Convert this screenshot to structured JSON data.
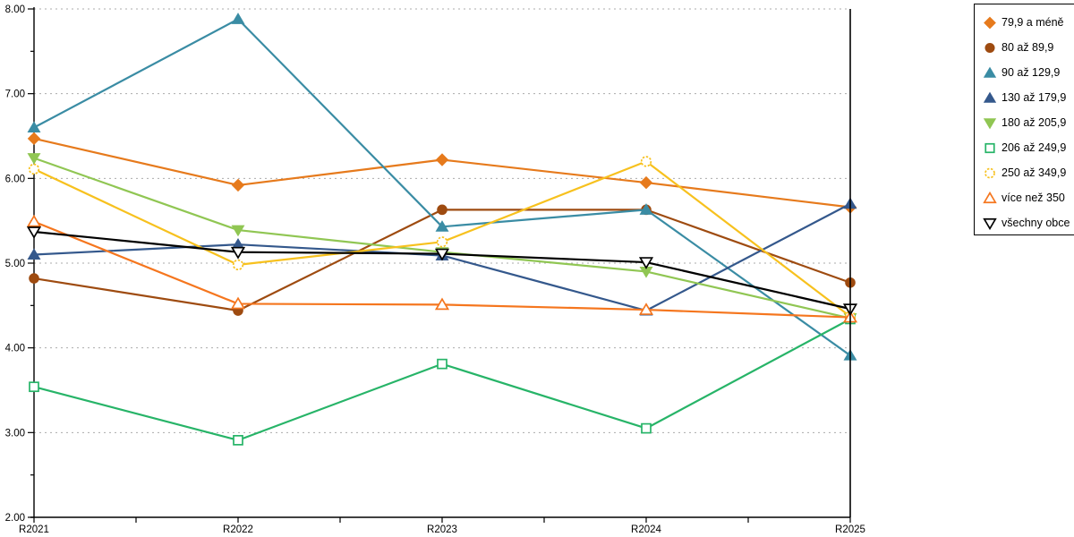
{
  "chart_data": {
    "type": "line",
    "title": "",
    "xlabel": "",
    "ylabel": "",
    "categories": [
      "R2021",
      "R2022",
      "R2023",
      "R2024",
      "R2025"
    ],
    "series": [
      {
        "name": "79,9 a méně",
        "marker": "diamond",
        "fill": "filled",
        "color": "#E67A1C",
        "values": [
          6.47,
          5.92,
          6.22,
          5.95,
          5.66
        ]
      },
      {
        "name": "80 až 89,9",
        "marker": "circle",
        "fill": "filled",
        "color": "#9E4B10",
        "values": [
          4.82,
          4.44,
          5.63,
          5.63,
          4.77
        ]
      },
      {
        "name": "90 až 129,9",
        "marker": "triangle-up",
        "fill": "filled",
        "color": "#3A8CA4",
        "values": [
          6.6,
          7.88,
          5.43,
          5.63,
          3.91
        ]
      },
      {
        "name": "130 až 179,9",
        "marker": "triangle-up",
        "fill": "filled",
        "color": "#34588C",
        "values": [
          5.1,
          5.22,
          5.09,
          4.44,
          5.7
        ]
      },
      {
        "name": "180 až 205,9",
        "marker": "triangle-down",
        "fill": "filled",
        "color": "#90C653",
        "values": [
          6.24,
          5.39,
          5.13,
          4.9,
          4.35
        ]
      },
      {
        "name": "206 až 249,9",
        "marker": "square",
        "fill": "open",
        "color": "#27B468",
        "values": [
          3.54,
          2.91,
          3.81,
          3.05,
          4.34
        ]
      },
      {
        "name": "250 až 349,9",
        "marker": "circle",
        "fill": "open",
        "color": "#F7C11E",
        "values": [
          6.11,
          4.98,
          5.25,
          6.2,
          4.37
        ],
        "outline": "dashed"
      },
      {
        "name": "více než 350",
        "marker": "triangle-up",
        "fill": "open",
        "color": "#F5761E",
        "values": [
          5.49,
          4.52,
          4.51,
          4.45,
          4.36
        ]
      },
      {
        "name": "všechny obce",
        "marker": "triangle-down",
        "fill": "open",
        "color": "#000000",
        "values": [
          5.37,
          5.13,
          5.11,
          5.01,
          4.46
        ]
      }
    ],
    "ylim": [
      2,
      8
    ],
    "ytick_step": 1,
    "ytick_minor_step": 0.5,
    "ytick_labels": [
      "2.00",
      "3.00",
      "4.00",
      "5.00",
      "6.00",
      "7.00",
      "8.00"
    ],
    "grid": "horizontal dotted, at whole numbers",
    "gridline_color": "#ABABAB",
    "axis_color": "#000000",
    "legend_position": "top-right",
    "legend_border_color": "#000000"
  }
}
